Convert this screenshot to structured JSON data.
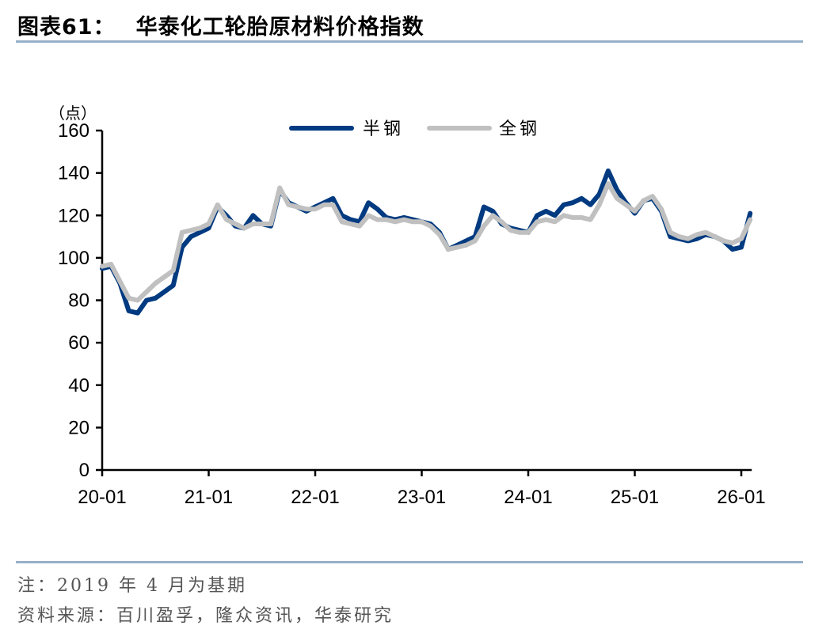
{
  "header": {
    "figure_label": "图表61：",
    "title": "华泰化工轮胎原材料价格指数"
  },
  "footer": {
    "note": "注：2019 年 4 月为基期",
    "source": "资料来源：百川盈孚，隆众资讯，华泰研究"
  },
  "colors": {
    "rule": "#97b0c9",
    "semi_steel": "#003a80",
    "all_steel": "#c0c0c0"
  },
  "chart_data": {
    "type": "line",
    "title": "华泰化工轮胎原材料价格指数",
    "xlabel": "",
    "ylabel": "（点）",
    "ylim": [
      0,
      160
    ],
    "yticks": [
      0,
      20,
      40,
      60,
      80,
      100,
      120,
      140,
      160
    ],
    "xtick_labels": [
      "20-01",
      "21-01",
      "22-01",
      "23-01",
      "24-01",
      "25-01",
      "26-01"
    ],
    "grid": false,
    "legend_position": "top-center",
    "legend": [
      "半钢",
      "全钢"
    ],
    "x": [
      "20-01",
      "20-02",
      "20-03",
      "20-04",
      "20-05",
      "20-06",
      "20-07",
      "20-08",
      "20-09",
      "20-10",
      "20-11",
      "20-12",
      "21-01",
      "21-02",
      "21-03",
      "21-04",
      "21-05",
      "21-06",
      "21-07",
      "21-08",
      "21-09",
      "21-10",
      "21-11",
      "21-12",
      "22-01",
      "22-02",
      "22-03",
      "22-04",
      "22-05",
      "22-06",
      "22-07",
      "22-08",
      "22-09",
      "22-10",
      "22-11",
      "22-12",
      "23-01",
      "23-02",
      "23-03",
      "23-04",
      "23-05",
      "23-06",
      "23-07",
      "23-08",
      "23-09",
      "23-10",
      "23-11",
      "23-12",
      "24-01",
      "24-02",
      "24-03",
      "24-04",
      "24-05",
      "24-06",
      "24-07",
      "24-08",
      "24-09",
      "24-10",
      "24-11",
      "24-12",
      "25-01",
      "25-02",
      "25-03",
      "25-04",
      "25-05",
      "25-06",
      "25-07",
      "25-08",
      "25-09",
      "25-10",
      "25-11",
      "25-12",
      "26-01",
      "26-02"
    ],
    "series": [
      {
        "name": "半钢",
        "color": "#003a80",
        "values": [
          95,
          96,
          88,
          75,
          74,
          80,
          81,
          84,
          87,
          105,
          110,
          112,
          114,
          124,
          120,
          115,
          114,
          120,
          116,
          115,
          132,
          126,
          124,
          122,
          124,
          126,
          128,
          120,
          118,
          117,
          126,
          123,
          119,
          118,
          119,
          118,
          117,
          116,
          112,
          104,
          106,
          108,
          110,
          124,
          122,
          116,
          114,
          113,
          112,
          120,
          122,
          120,
          125,
          126,
          128,
          125,
          130,
          141,
          132,
          126,
          121,
          127,
          128,
          122,
          110,
          109,
          108,
          109,
          111,
          110,
          108,
          104,
          105,
          121
        ]
      },
      {
        "name": "全钢",
        "color": "#c0c0c0",
        "values": [
          96,
          97,
          89,
          81,
          80,
          84,
          88,
          91,
          94,
          112,
          113,
          114,
          116,
          125,
          118,
          116,
          114,
          116,
          116,
          116,
          133,
          125,
          124,
          123,
          123,
          125,
          125,
          117,
          116,
          115,
          120,
          118,
          118,
          117,
          118,
          117,
          117,
          115,
          111,
          104,
          105,
          106,
          108,
          115,
          120,
          117,
          113,
          112,
          112,
          117,
          118,
          117,
          120,
          119,
          119,
          118,
          125,
          135,
          128,
          125,
          122,
          127,
          129,
          123,
          112,
          110,
          109,
          111,
          112,
          110,
          108,
          107,
          109,
          118
        ]
      }
    ]
  },
  "axis": {
    "y_unit": "（点）",
    "y_labels": [
      "0",
      "20",
      "40",
      "60",
      "80",
      "100",
      "120",
      "140",
      "160"
    ],
    "x_labels": [
      "20-01",
      "21-01",
      "22-01",
      "23-01",
      "24-01",
      "25-01",
      "26-01"
    ]
  },
  "legend": {
    "items": [
      {
        "label": "半钢",
        "color": "#003a80"
      },
      {
        "label": "全钢",
        "color": "#c0c0c0"
      }
    ]
  }
}
